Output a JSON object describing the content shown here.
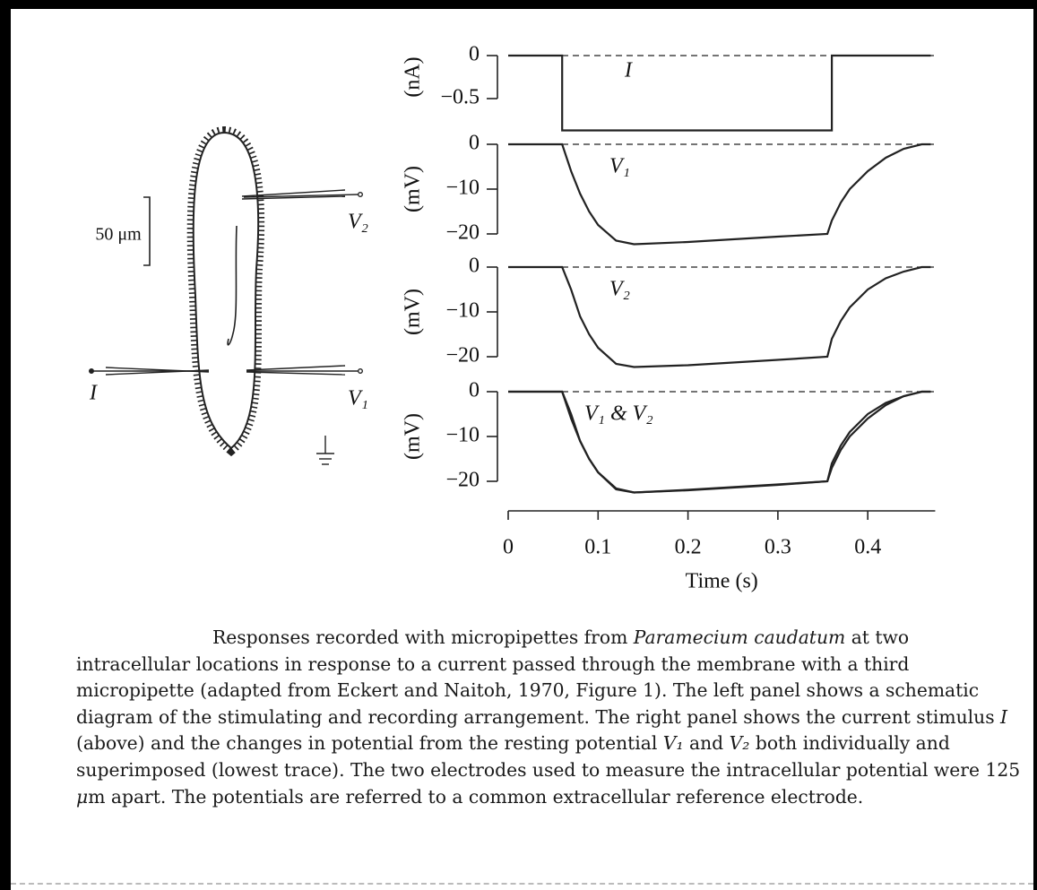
{
  "diagram": {
    "scale_label": "50 μm",
    "labels": [
      "V₂",
      "I",
      "V₁"
    ]
  },
  "chart_data": [
    {
      "type": "line",
      "ylabel": "(nA)",
      "label": "I",
      "ylim": [
        -0.9,
        0.05
      ],
      "yticks": [
        0,
        {
          "value": -0.5,
          "label": "−0.5"
        }
      ],
      "xlim": [
        0,
        0.475
      ],
      "x": [
        0,
        0.06,
        0.06,
        0.36,
        0.36,
        0.47
      ],
      "series": [
        {
          "color": "#222",
          "values": [
            0,
            0,
            -0.87,
            -0.87,
            0,
            0
          ]
        }
      ]
    },
    {
      "type": "line",
      "ylabel": "(mV)",
      "label": "V₁",
      "ylim": [
        -24,
        1
      ],
      "yticks": [
        0,
        {
          "value": -10,
          "label": "−10"
        },
        {
          "value": -20,
          "label": "−20"
        }
      ],
      "xlim": [
        0,
        0.475
      ],
      "x": [
        0,
        0.05,
        0.06,
        0.07,
        0.08,
        0.09,
        0.1,
        0.12,
        0.14,
        0.2,
        0.3,
        0.355,
        0.36,
        0.37,
        0.38,
        0.4,
        0.42,
        0.44,
        0.46,
        0.47
      ],
      "series": [
        {
          "color": "#222",
          "values": [
            0,
            0,
            0,
            -6,
            -11,
            -15,
            -18,
            -21.5,
            -22.3,
            -21.8,
            -20.6,
            -20,
            -17,
            -13,
            -10,
            -6,
            -3,
            -1,
            0,
            0
          ]
        }
      ]
    },
    {
      "type": "line",
      "ylabel": "(mV)",
      "label": "V₂",
      "ylim": [
        -24,
        1
      ],
      "yticks": [
        0,
        {
          "value": -10,
          "label": "−10"
        },
        {
          "value": -20,
          "label": "−20"
        }
      ],
      "xlim": [
        0,
        0.475
      ],
      "x": [
        0,
        0.05,
        0.06,
        0.07,
        0.08,
        0.09,
        0.1,
        0.12,
        0.14,
        0.2,
        0.3,
        0.355,
        0.36,
        0.37,
        0.38,
        0.4,
        0.42,
        0.44,
        0.46,
        0.47
      ],
      "series": [
        {
          "color": "#222",
          "values": [
            0,
            0,
            0,
            -5,
            -11,
            -15,
            -18,
            -21.6,
            -22.3,
            -21.9,
            -20.7,
            -20,
            -16,
            -12,
            -9,
            -5,
            -2.5,
            -1,
            0,
            0
          ]
        }
      ]
    },
    {
      "type": "line",
      "ylabel": "(mV)",
      "label": "V₁ & V₂",
      "ylim": [
        -24,
        1
      ],
      "yticks": [
        0,
        {
          "value": -10,
          "label": "−10"
        },
        {
          "value": -20,
          "label": "−20"
        }
      ],
      "xlim": [
        0,
        0.475
      ],
      "xticks": [
        0,
        0.1,
        0.2,
        0.3,
        0.4
      ],
      "xlabel": "Time (s)",
      "x": [
        0,
        0.05,
        0.06,
        0.07,
        0.08,
        0.09,
        0.1,
        0.12,
        0.14,
        0.2,
        0.3,
        0.355,
        0.36,
        0.37,
        0.38,
        0.4,
        0.42,
        0.44,
        0.46,
        0.47
      ],
      "series": [
        {
          "color": "#222",
          "values": [
            0,
            0,
            0,
            -6,
            -11,
            -15,
            -18,
            -21.6,
            -22.5,
            -21.9,
            -20.7,
            -20,
            -17,
            -13,
            -10,
            -6,
            -3,
            -1,
            0,
            0
          ]
        },
        {
          "color": "#222",
          "values": [
            0,
            0,
            0,
            -5,
            -11,
            -15,
            -18,
            -21.8,
            -22.5,
            -22,
            -20.8,
            -20,
            -16,
            -12,
            -9,
            -5,
            -2.5,
            -1,
            0,
            0
          ]
        }
      ]
    }
  ],
  "caption": [
    "Responses recorded with micropipettes from ",
    "Paramecium caudatum",
    " at two intracellular locations in response to a current passed through the membrane with a third micropipette (adapted from Eckert and Naitoh, 1970, Figure 1). The left panel shows a schematic diagram of the stimulating and recording arrangement. The right panel shows the current stimulus ",
    "I",
    " (above) and the changes in potential from the resting potential ",
    "V₁",
    " and ",
    "V₂",
    " both individually and superimposed (lowest trace). The two electrodes used to measure the intracellular potential were 125 ",
    "μ",
    "m apart. The potentials are referred to a common extracellular reference electrode."
  ]
}
